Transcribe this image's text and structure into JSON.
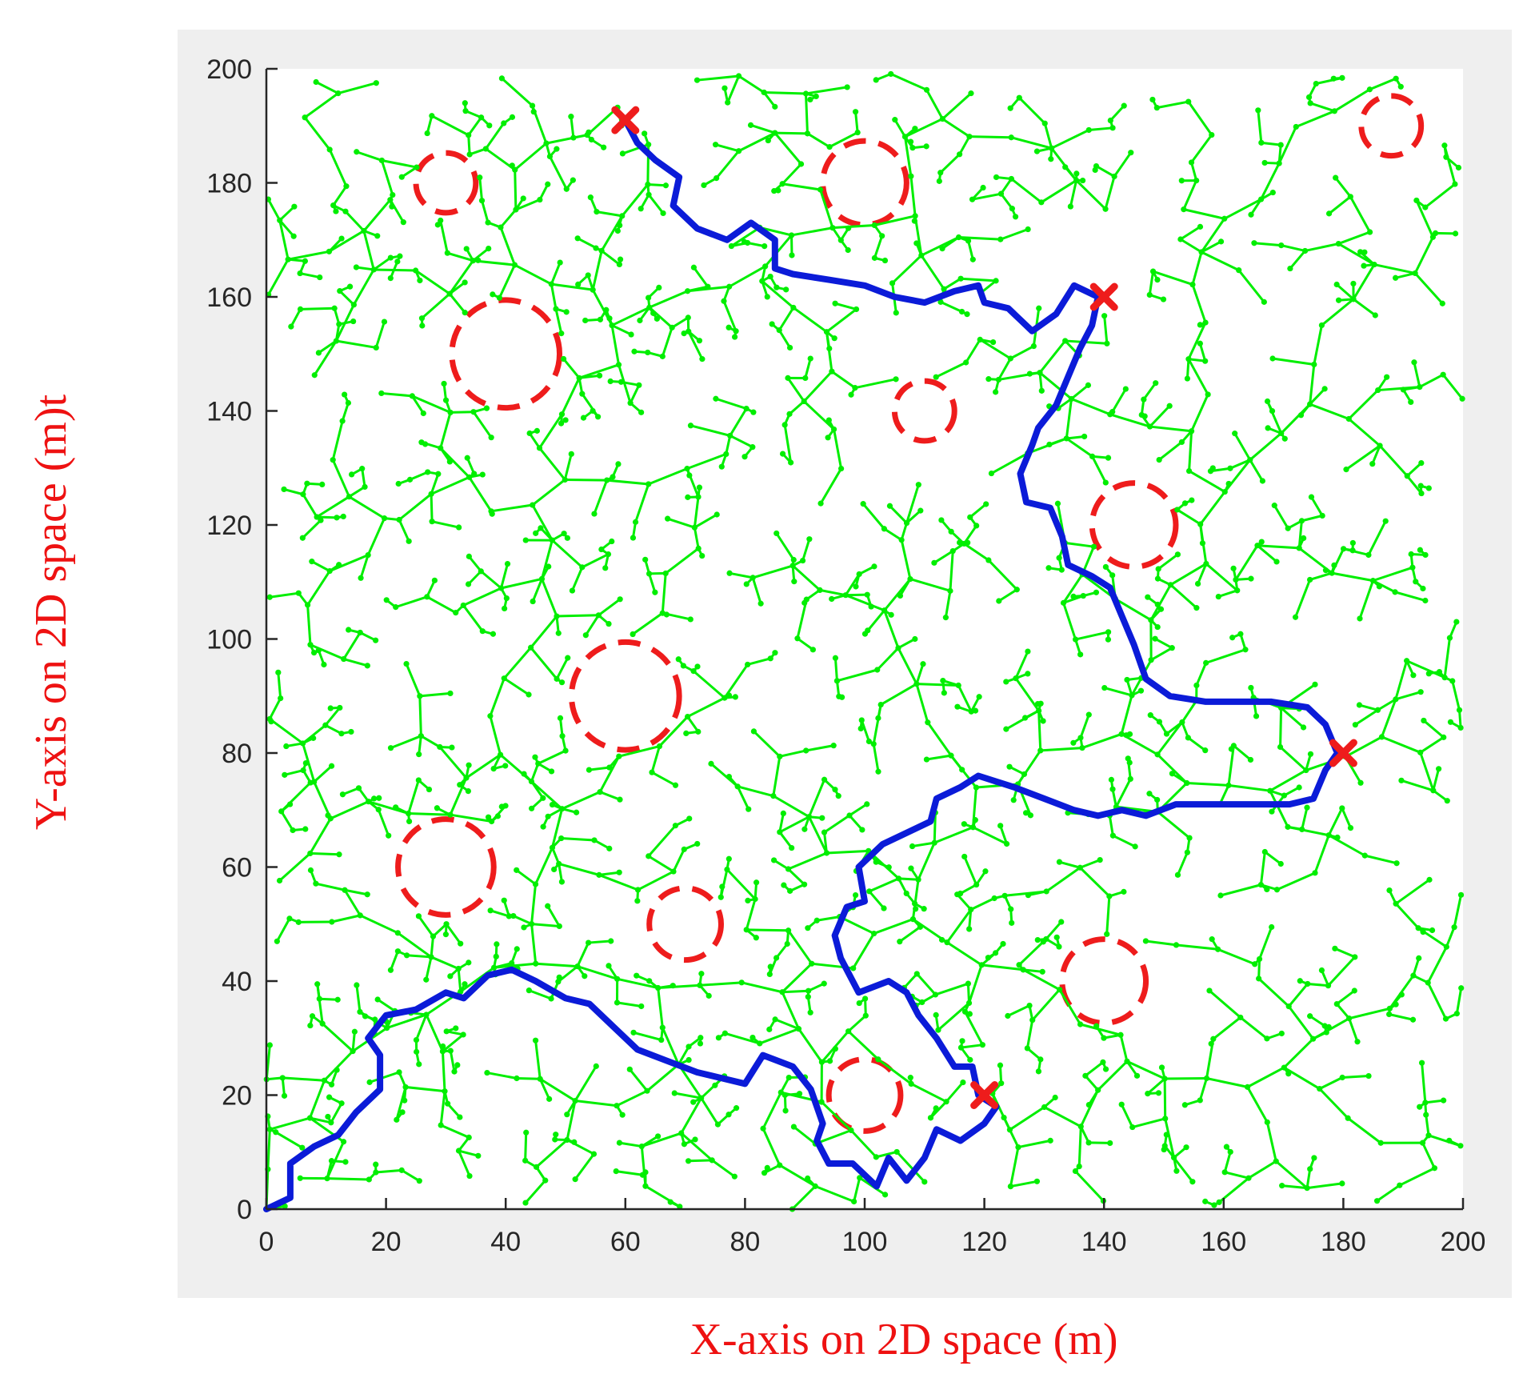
{
  "chart_data": {
    "type": "scatter",
    "title": "",
    "xlabel": "X-axis on 2D space (m)",
    "ylabel": "Y-axis on 2D space (m)t",
    "xlim": [
      0,
      200
    ],
    "ylim": [
      0,
      200
    ],
    "xticks": [
      0,
      20,
      40,
      60,
      80,
      100,
      120,
      140,
      160,
      180,
      200
    ],
    "yticks": [
      0,
      20,
      40,
      60,
      80,
      100,
      120,
      140,
      160,
      180,
      200
    ],
    "grid": false,
    "legend": "none",
    "colors": {
      "tree": "#00ee00",
      "path": "#0b1bd8",
      "obstacle": "#ee1c1c",
      "waypoint": "#ee1c1c",
      "figure_background": "#efefef",
      "axes_background": "#ffffff"
    },
    "tree": {
      "description_type": "RRT exploration tree",
      "start": [
        0,
        0
      ],
      "node_count": 1500,
      "step": 7
    },
    "obstacles": [
      {
        "cx": 30,
        "cy": 180,
        "r": 5
      },
      {
        "cx": 100,
        "cy": 180,
        "r": 7
      },
      {
        "cx": 188,
        "cy": 190,
        "r": 5
      },
      {
        "cx": 40,
        "cy": 150,
        "r": 9
      },
      {
        "cx": 110,
        "cy": 140,
        "r": 5
      },
      {
        "cx": 145,
        "cy": 120,
        "r": 7
      },
      {
        "cx": 60,
        "cy": 90,
        "r": 9
      },
      {
        "cx": 30,
        "cy": 60,
        "r": 8
      },
      {
        "cx": 70,
        "cy": 50,
        "r": 6
      },
      {
        "cx": 140,
        "cy": 40,
        "r": 7
      },
      {
        "cx": 100,
        "cy": 20,
        "r": 6
      }
    ],
    "waypoints": [
      {
        "x": 60,
        "y": 191
      },
      {
        "x": 140,
        "y": 160
      },
      {
        "x": 180,
        "y": 80
      },
      {
        "x": 120,
        "y": 20
      }
    ],
    "path": [
      [
        0,
        0
      ],
      [
        4,
        2
      ],
      [
        4,
        8
      ],
      [
        8,
        11
      ],
      [
        12,
        13
      ],
      [
        15,
        17
      ],
      [
        19,
        21
      ],
      [
        19,
        27
      ],
      [
        17,
        30
      ],
      [
        20,
        34
      ],
      [
        25,
        35
      ],
      [
        30,
        38
      ],
      [
        33,
        37
      ],
      [
        37,
        41
      ],
      [
        41,
        42
      ],
      [
        45,
        40
      ],
      [
        50,
        37
      ],
      [
        54,
        36
      ],
      [
        58,
        32
      ],
      [
        62,
        28
      ],
      [
        67,
        26
      ],
      [
        72,
        24
      ],
      [
        76,
        23
      ],
      [
        80,
        22
      ],
      [
        83,
        27
      ],
      [
        88,
        25
      ],
      [
        91,
        21
      ],
      [
        93,
        15
      ],
      [
        92,
        12
      ],
      [
        94,
        8
      ],
      [
        98,
        8
      ],
      [
        102,
        4
      ],
      [
        104,
        9
      ],
      [
        107,
        5
      ],
      [
        110,
        9
      ],
      [
        112,
        14
      ],
      [
        116,
        12
      ],
      [
        120,
        15
      ],
      [
        122,
        18
      ],
      [
        119,
        20
      ],
      [
        118,
        25
      ],
      [
        115,
        25
      ],
      [
        112,
        30
      ],
      [
        109,
        34
      ],
      [
        107,
        38
      ],
      [
        104,
        40
      ],
      [
        99,
        38
      ],
      [
        96,
        44
      ],
      [
        95,
        48
      ],
      [
        97,
        53
      ],
      [
        100,
        54
      ],
      [
        99,
        60
      ],
      [
        103,
        64
      ],
      [
        107,
        66
      ],
      [
        111,
        68
      ],
      [
        112,
        72
      ],
      [
        116,
        74
      ],
      [
        119,
        76
      ],
      [
        125,
        74
      ],
      [
        130,
        72
      ],
      [
        135,
        70
      ],
      [
        139,
        69
      ],
      [
        143,
        70
      ],
      [
        147,
        69
      ],
      [
        152,
        71
      ],
      [
        160,
        71
      ],
      [
        166,
        71
      ],
      [
        171,
        71
      ],
      [
        175,
        72
      ],
      [
        177,
        77
      ],
      [
        179,
        80
      ],
      [
        177,
        85
      ],
      [
        174,
        88
      ],
      [
        168,
        89
      ],
      [
        162,
        89
      ],
      [
        157,
        89
      ],
      [
        151,
        90
      ],
      [
        147,
        93
      ],
      [
        145,
        99
      ],
      [
        143,
        104
      ],
      [
        141,
        109
      ],
      [
        138,
        111
      ],
      [
        134,
        113
      ],
      [
        133,
        118
      ],
      [
        131,
        123
      ],
      [
        127,
        124
      ],
      [
        126,
        129
      ],
      [
        128,
        134
      ],
      [
        129,
        137
      ],
      [
        132,
        141
      ],
      [
        134,
        146
      ],
      [
        136,
        151
      ],
      [
        138,
        155
      ],
      [
        139,
        160
      ],
      [
        135,
        162
      ],
      [
        132,
        157
      ],
      [
        128,
        154
      ],
      [
        124,
        158
      ],
      [
        120,
        159
      ],
      [
        119,
        162
      ],
      [
        115,
        161
      ],
      [
        110,
        159
      ],
      [
        105,
        160
      ],
      [
        100,
        162
      ],
      [
        94,
        163
      ],
      [
        88,
        164
      ],
      [
        85,
        165
      ],
      [
        85,
        170
      ],
      [
        81,
        173
      ],
      [
        77,
        170
      ],
      [
        72,
        172
      ],
      [
        68,
        176
      ],
      [
        69,
        181
      ],
      [
        65,
        184
      ],
      [
        62,
        187
      ],
      [
        60,
        191
      ]
    ]
  }
}
